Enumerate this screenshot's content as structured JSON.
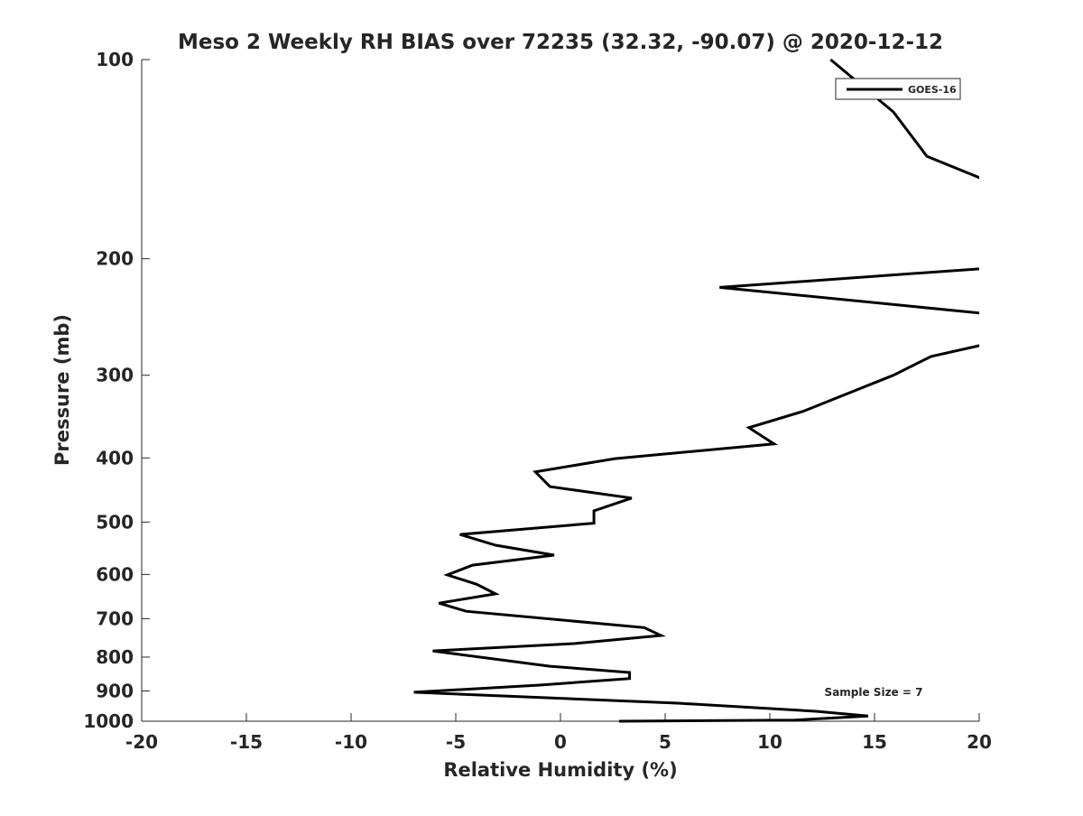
{
  "chart_data": {
    "type": "line",
    "title": "Meso 2 Weekly RH BIAS over 72235 (32.32, -90.07) @ 2020-12-12",
    "xlabel": "Relative Humidity (%)",
    "ylabel": "Pressure (mb)",
    "xlim": [
      -20,
      20
    ],
    "ylim": [
      100,
      1000
    ],
    "yscale": "log",
    "yreverse": true,
    "grid": false,
    "x_ticks": [
      -20,
      -15,
      -10,
      -5,
      0,
      5,
      10,
      15,
      20
    ],
    "x_tick_labels": [
      "-20",
      "-15",
      "-10",
      "-5",
      "0",
      "5",
      "10",
      "15",
      "20"
    ],
    "y_ticks": [
      100,
      200,
      300,
      400,
      500,
      600,
      700,
      800,
      900,
      1000
    ],
    "y_tick_labels": [
      "100",
      "200",
      "300",
      "400",
      "500",
      "600",
      "700",
      "800",
      "900",
      "1000"
    ],
    "legend": {
      "placement": "top-right",
      "entries": [
        "GOES-16"
      ]
    },
    "annotation": "Sample Size = 7",
    "series": [
      {
        "name": "GOES-16",
        "color": "#000000",
        "x": [
          12.9,
          15.9,
          17.5,
          22.0,
          22.0,
          7.6,
          22.0,
          22.0,
          17.7,
          15.9,
          11.6,
          9.0,
          10.2,
          2.6,
          -1.2,
          -0.5,
          3.4,
          1.6,
          1.6,
          -4.8,
          -3.1,
          -0.3,
          -4.2,
          -5.4,
          -4.0,
          -3.1,
          -5.8,
          -4.5,
          4.0,
          4.8,
          0.7,
          -6.1,
          -0.5,
          3.3,
          3.3,
          -1.0,
          -7.0,
          5.6,
          12.2,
          14.7,
          11.2,
          2.8
        ],
        "y": [
          100,
          120,
          140,
          160,
          205,
          221,
          245,
          262,
          281,
          300,
          340,
          360,
          381,
          401,
          420,
          442,
          460,
          481,
          502,
          522,
          542,
          561,
          581,
          601,
          621,
          642,
          663,
          682,
          722,
          742,
          763,
          783,
          826,
          844,
          862,
          882,
          904,
          939,
          966,
          982,
          996,
          1000
        ]
      }
    ]
  }
}
